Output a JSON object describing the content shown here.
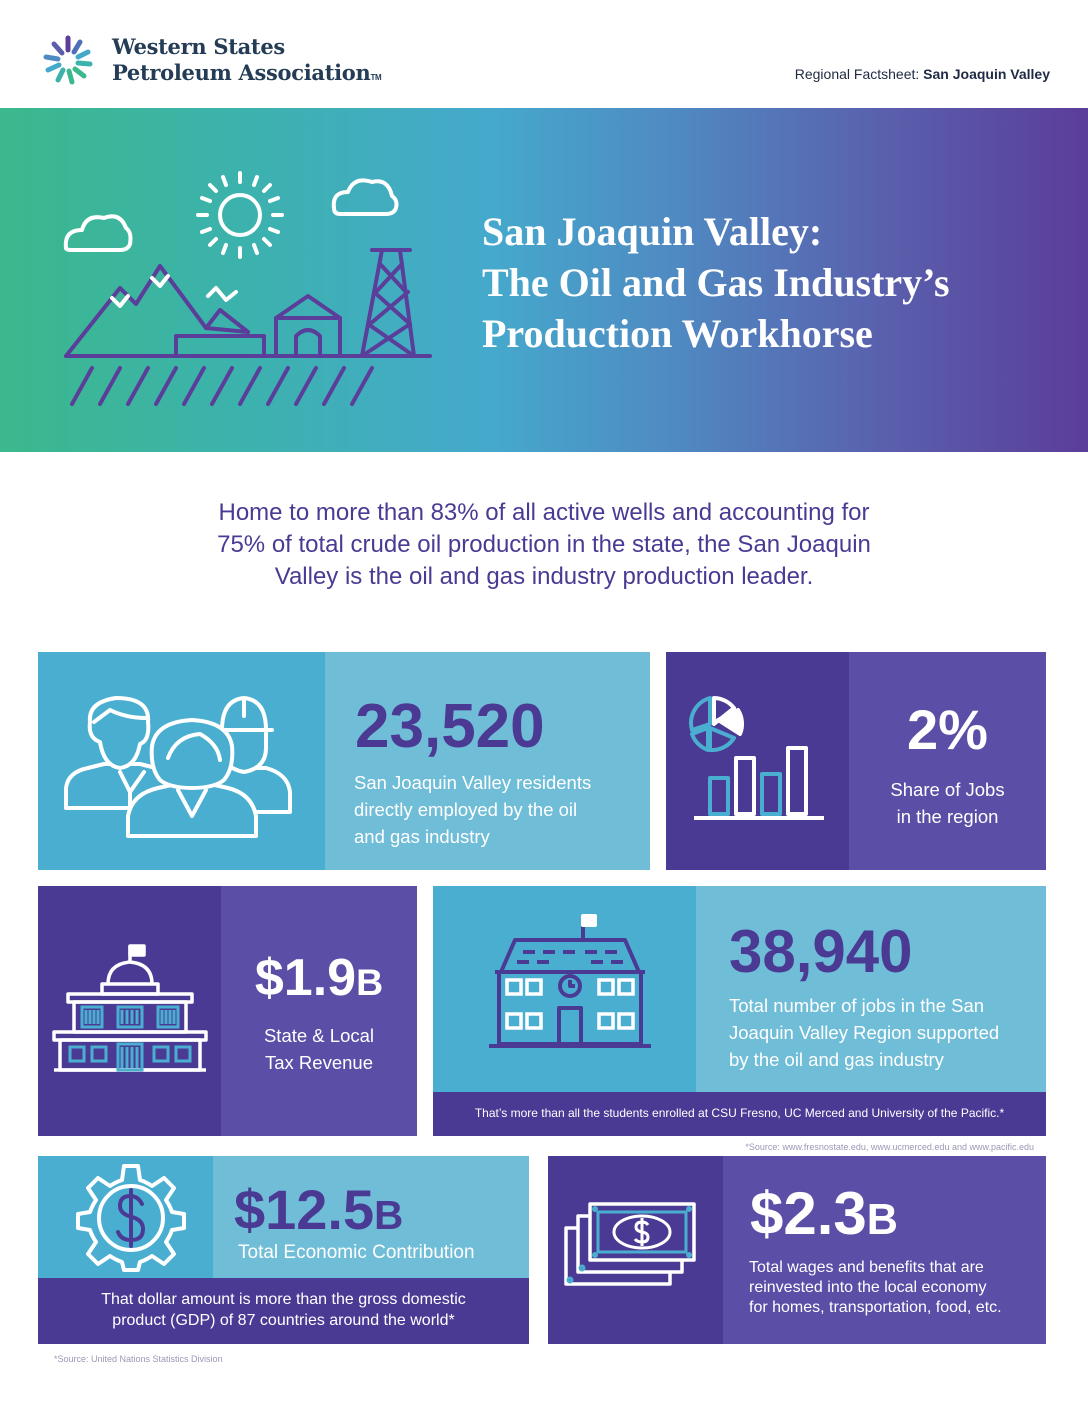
{
  "header": {
    "org_line1": "Western States",
    "org_line2": "Petroleum Association",
    "tm": "TM",
    "factsheet_label": "Regional Factsheet:",
    "factsheet_region": "San Joaquin Valley"
  },
  "hero": {
    "title_line1": "San Joaquin Valley:",
    "title_line2": "The Oil and Gas Industry’s",
    "title_line3": "Production Workhorse"
  },
  "intro": {
    "line1": "Home to more than 83% of all active wells and accounting for",
    "line2": "75% of total crude oil production in the state, the San Joaquin",
    "line3": "Valley is the oil and gas industry production leader."
  },
  "stats": {
    "employed": {
      "value": "23,520",
      "line1": "San Joaquin Valley residents",
      "line2": "directly employed by the oil",
      "line3": "and gas industry"
    },
    "share": {
      "value": "2%",
      "line1": "Share of Jobs",
      "line2": "in the region"
    },
    "tax": {
      "value": "$1.9",
      "suffix": "B",
      "line1": "State & Local",
      "line2": "Tax Revenue"
    },
    "jobs": {
      "value": "38,940",
      "line1": "Total number of jobs in the San",
      "line2": "Joaquin Valley Region supported",
      "line3": "by the oil and gas industry",
      "note": "That’s more than all the students enrolled at CSU Fresno, UC Merced and University of the Pacific.*",
      "source": "*Source: www.fresnostate.edu, www.ucmerced.edu and www.pacific.edu"
    },
    "economic": {
      "value": "$12.5",
      "suffix": "B",
      "label": "Total Economic Contribution",
      "note_line1": "That dollar amount is more than the gross domestic",
      "note_line2": "product (GDP) of 87 countries around the world*",
      "source": "*Source: United Nations Statistics Division"
    },
    "wages": {
      "value": "$2.3",
      "suffix": "B",
      "line1": "Total wages and benefits that are",
      "line2": "reinvested into the local economy",
      "line3": "for homes, transportation, food, etc."
    }
  },
  "colors": {
    "purple_dark": "#4b3a94",
    "purple_mid": "#5a4ea6",
    "blue_mid": "#4aaed0",
    "blue_light": "#70bdd8",
    "heading": "#4b3a94"
  }
}
